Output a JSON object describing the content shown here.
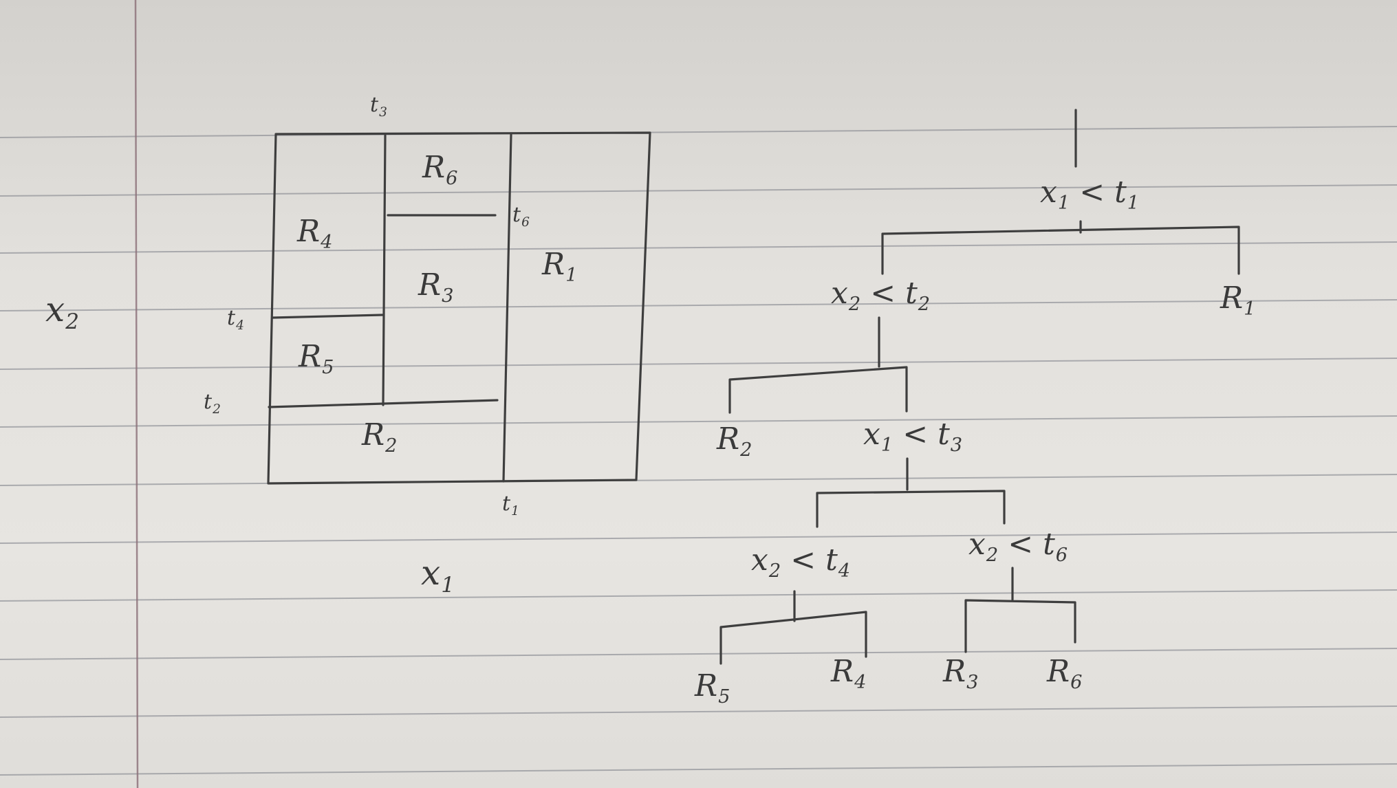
{
  "colors": {
    "paper": "#e3e1dd",
    "ruling": "#8a8c93",
    "margin_line": "#8b6f78",
    "ink": "#3e3e3e"
  },
  "partition": {
    "axis_x": "x",
    "axis_x_sub": "1",
    "axis_y": "x",
    "axis_y_sub": "2",
    "thresholds": {
      "t1": {
        "base": "t",
        "sub": "1"
      },
      "t2": {
        "base": "t",
        "sub": "2"
      },
      "t3": {
        "base": "t",
        "sub": "3"
      },
      "t4": {
        "base": "t",
        "sub": "4"
      },
      "t6": {
        "base": "t",
        "sub": "6"
      }
    },
    "regions": {
      "R1": {
        "base": "R",
        "sub": "1"
      },
      "R2": {
        "base": "R",
        "sub": "2"
      },
      "R3": {
        "base": "R",
        "sub": "3"
      },
      "R4": {
        "base": "R",
        "sub": "4"
      },
      "R5": {
        "base": "R",
        "sub": "5"
      },
      "R6": {
        "base": "R",
        "sub": "6"
      }
    }
  },
  "tree": {
    "root": {
      "var": "x",
      "var_sub": "1",
      "op": "<",
      "thr": "t",
      "thr_sub": "1"
    },
    "n2": {
      "var": "x",
      "var_sub": "2",
      "op": "<",
      "thr": "t",
      "thr_sub": "2"
    },
    "n3": {
      "var": "x",
      "var_sub": "1",
      "op": "<",
      "thr": "t",
      "thr_sub": "3"
    },
    "n4": {
      "var": "x",
      "var_sub": "2",
      "op": "<",
      "thr": "t",
      "thr_sub": "4"
    },
    "n6": {
      "var": "x",
      "var_sub": "2",
      "op": "<",
      "thr": "t",
      "thr_sub": "6"
    },
    "leaves": {
      "R1": {
        "base": "R",
        "sub": "1"
      },
      "R2": {
        "base": "R",
        "sub": "2"
      },
      "R3": {
        "base": "R",
        "sub": "3"
      },
      "R4": {
        "base": "R",
        "sub": "4"
      },
      "R5": {
        "base": "R",
        "sub": "5"
      },
      "R6": {
        "base": "R",
        "sub": "6"
      }
    }
  }
}
